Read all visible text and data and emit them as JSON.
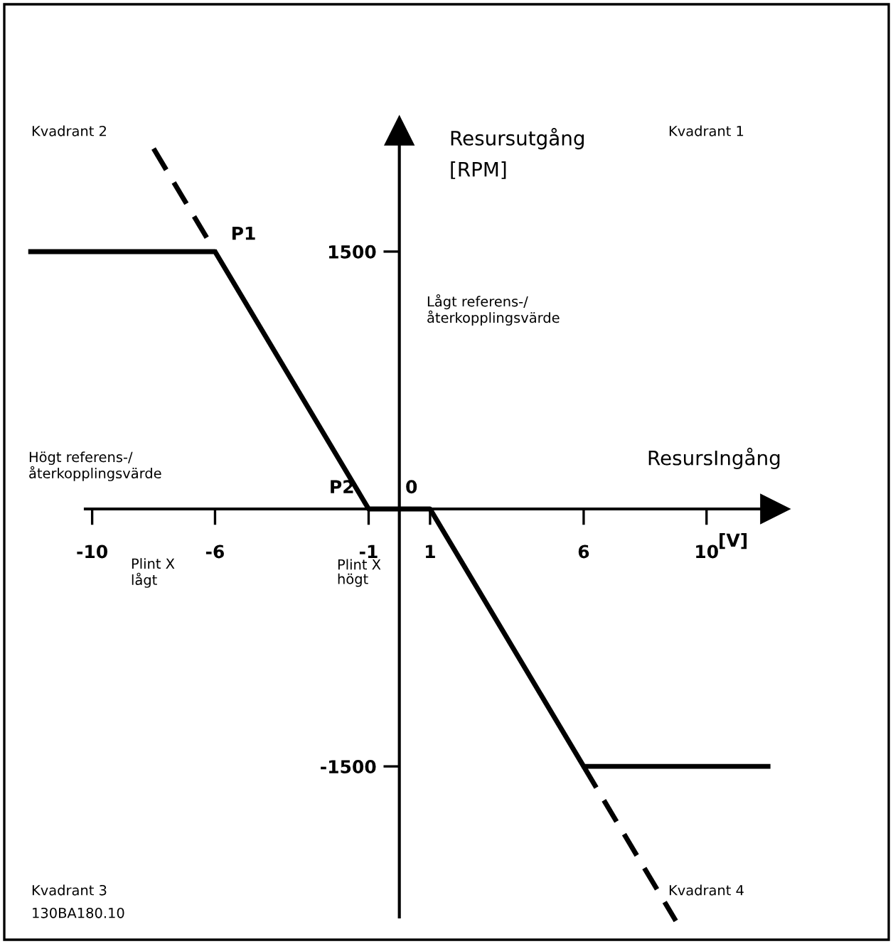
{
  "chart_data": {
    "type": "line",
    "xlabel": "ResursIngång",
    "ylabel": "Resursutgång\n[RPM]",
    "xlim": [
      -13,
      16.07
    ],
    "ylim": [
      -2535,
      2966
    ],
    "xticks": [
      -10,
      -6,
      -1,
      1,
      6,
      10
    ],
    "yticks": [
      1500,
      -1500
    ],
    "series": [
      {
        "x": [
          -12,
          -6,
          -1,
          1,
          6,
          12
        ],
        "values": [
          1500,
          1500,
          0,
          0,
          -1500,
          -1500
        ],
        "color": "#000000",
        "line_style": "solid"
      },
      {
        "x": [
          -8,
          -6,
          0,
          6,
          9
        ],
        "values": [
          2100,
          1500,
          null,
          -1500,
          -2400
        ],
        "color": "#000000",
        "line_style": "dashed"
      }
    ],
    "annotations": [
      {
        "text": "P1",
        "x": -6,
        "y": 1500
      },
      {
        "text": "P2",
        "x": -1,
        "y": 0
      },
      "Kvadrant 2",
      "Kvadrant 1",
      "Kvadrant 3",
      "Kvadrant 4",
      "Lågt referens-/\nåterkopplingsvärde",
      "Högt referens-/\nåterkopplingsvärde",
      "Plint X\nlågt",
      "Plint X\nhögt",
      {
        "text": "0",
        "x": 0,
        "y": 0
      },
      "[V]",
      "130BA180.10"
    ],
    "grid": false,
    "legend": false
  }
}
